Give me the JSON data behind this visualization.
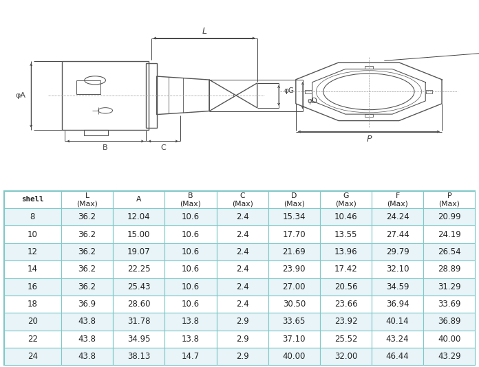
{
  "headers": [
    "shell",
    "L\n(Max)",
    "A",
    "B\n(Max)",
    "C\n(Max)",
    "D\n(Max)",
    "G\n(Max)",
    "F\n(Max)",
    "P\n(Max)"
  ],
  "rows": [
    [
      "8",
      "36.2",
      "12.04",
      "10.6",
      "2.4",
      "15.34",
      "10.46",
      "24.24",
      "20.99"
    ],
    [
      "10",
      "36.2",
      "15.00",
      "10.6",
      "2.4",
      "17.70",
      "13.55",
      "27.44",
      "24.19"
    ],
    [
      "12",
      "36.2",
      "19.07",
      "10.6",
      "2.4",
      "21.69",
      "13.96",
      "29.79",
      "26.54"
    ],
    [
      "14",
      "36.2",
      "22.25",
      "10.6",
      "2.4",
      "23.90",
      "17.42",
      "32.10",
      "28.89"
    ],
    [
      "16",
      "36.2",
      "25.43",
      "10.6",
      "2.4",
      "27.00",
      "20.56",
      "34.59",
      "31.29"
    ],
    [
      "18",
      "36.9",
      "28.60",
      "10.6",
      "2.4",
      "30.50",
      "23.66",
      "36.94",
      "33.69"
    ],
    [
      "20",
      "43.8",
      "31.78",
      "13.8",
      "2.9",
      "33.65",
      "23.92",
      "40.14",
      "36.89"
    ],
    [
      "22",
      "43.8",
      "34.95",
      "13.8",
      "2.9",
      "37.10",
      "25.52",
      "43.24",
      "40.00"
    ],
    [
      "24",
      "43.8",
      "38.13",
      "14.7",
      "2.9",
      "40.00",
      "32.00",
      "46.44",
      "43.29"
    ]
  ],
  "bg_color": "#ffffff",
  "table_border_color": "#7ec8c8",
  "header_bg": "#ffffff",
  "row_bg_odd": "#ffffff",
  "row_bg_even": "#e8f4f8",
  "text_color": "#222222",
  "dim_color": "#444444",
  "line_color": "#555555"
}
